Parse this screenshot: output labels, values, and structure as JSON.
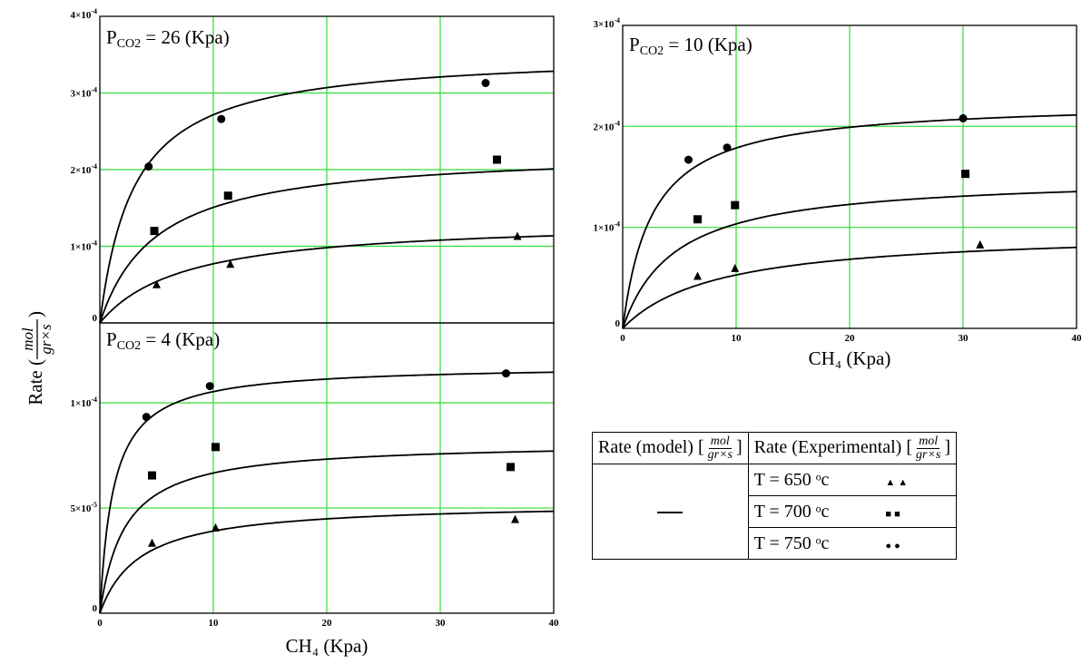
{
  "chart_data": [
    {
      "type": "scatter",
      "title": "P_CO2 = 26 (Kpa)",
      "title_main": "P",
      "title_sub": "CO2",
      "title_rest": " = 26 (Kpa)",
      "xlim": [
        0,
        40
      ],
      "ylim": [
        0,
        0.0004
      ],
      "xticks": [
        "",
        "",
        "",
        "",
        ""
      ],
      "yticks": [
        "0",
        "1×10⁻⁴",
        "2×10⁻⁴",
        "3×10⁻⁴",
        "4×10⁻⁴"
      ],
      "grid": true,
      "series": [
        {
          "marker": "triangle",
          "x": [
            5,
            11.5,
            36.8
          ],
          "y": [
            5e-05,
            7.66e-05,
            0.000113
          ],
          "model": {
            "vmax": 0.000135,
            "k": 7.5
          }
        },
        {
          "marker": "square",
          "x": [
            4.8,
            11.3,
            35
          ],
          "y": [
            0.00012,
            0.000166,
            0.000213
          ],
          "model": {
            "vmax": 0.000226,
            "k": 5
          }
        },
        {
          "marker": "circle",
          "x": [
            4.3,
            10.7,
            34
          ],
          "y": [
            0.000204,
            0.000266,
            0.000313
          ],
          "model": {
            "vmax": 0.000353,
            "k": 3
          }
        }
      ]
    },
    {
      "type": "scatter",
      "title": "P_CO2 = 4 (Kpa)",
      "title_main": "P",
      "title_sub": "CO2",
      "title_rest": " = 4 (Kpa)",
      "xlim": [
        0,
        40
      ],
      "ylim": [
        0,
        0.000138
      ],
      "xticks": [
        "0",
        "10",
        "20",
        "30",
        "40"
      ],
      "yticks": [
        "0",
        "5×10⁻⁵",
        "1×10⁻⁴"
      ],
      "xlabel": "CH₄ (Kpa)",
      "grid": true,
      "series": [
        {
          "marker": "triangle",
          "x": [
            4.6,
            10.2,
            36.6
          ],
          "y": [
            3.33e-05,
            4.06e-05,
            4.46e-05
          ],
          "model": {
            "vmax": 5.27e-05,
            "k": 3.5
          }
        },
        {
          "marker": "square",
          "x": [
            4.6,
            10.2,
            36.2
          ],
          "y": [
            6.55e-05,
            7.9e-05,
            6.95e-05
          ],
          "model": {
            "vmax": 8.13e-05,
            "k": 2.2
          }
        },
        {
          "marker": "circle",
          "x": [
            4.1,
            9.7,
            35.8
          ],
          "y": [
            9.33e-05,
            0.000108,
            0.000114
          ],
          "model": {
            "vmax": 0.000118,
            "k": 1.2
          }
        }
      ]
    },
    {
      "type": "scatter",
      "title": "P_CO2 = 10 (Kpa)",
      "title_main": "P",
      "title_sub": "CO2",
      "title_rest": " = 10 (Kpa)",
      "xlim": [
        0,
        40
      ],
      "ylim": [
        0,
        0.0003
      ],
      "xticks": [
        "0",
        "10",
        "20",
        "30",
        "40"
      ],
      "yticks": [
        "0",
        "1×10⁻⁴",
        "2×10⁻⁴",
        "3×10⁻⁴"
      ],
      "xlabel": "CH₄ (Kpa)",
      "grid": true,
      "series": [
        {
          "marker": "triangle",
          "x": [
            6.6,
            9.9,
            31.5
          ],
          "y": [
            5.17e-05,
            5.94e-05,
            8.27e-05
          ],
          "model": {
            "vmax": 9.68e-05,
            "k": 8.3
          }
        },
        {
          "marker": "square",
          "x": [
            6.6,
            9.9,
            30.2
          ],
          "y": [
            0.000108,
            0.000122,
            0.000153
          ],
          "model": {
            "vmax": 0.000151,
            "k": 4.6
          }
        },
        {
          "marker": "circle",
          "x": [
            5.8,
            9.2,
            30
          ],
          "y": [
            0.000167,
            0.000179,
            0.000208
          ],
          "model": {
            "vmax": 0.000225,
            "k": 2.6
          }
        }
      ]
    }
  ],
  "shared_ylabel": {
    "prefix": "Rate (",
    "num": "mol",
    "den": "gr×s",
    "suffix": ")"
  },
  "legend": {
    "model_header": "Rate (model) [",
    "model_header_close": "]",
    "exp_header": "Rate (Experimental) [",
    "exp_header_close": "]",
    "unit_num": "mol",
    "unit_den": "gr×s",
    "rows": [
      {
        "label": "T = 650 ᵒc",
        "symbol": "▲▲"
      },
      {
        "label": "T = 700 ᵒc",
        "symbol": "■■"
      },
      {
        "label": "T = 750 ᵒc",
        "symbol": "●●"
      }
    ]
  },
  "colors": {
    "grid": "#33dd33",
    "line": "#000000",
    "frame": "#000000"
  }
}
